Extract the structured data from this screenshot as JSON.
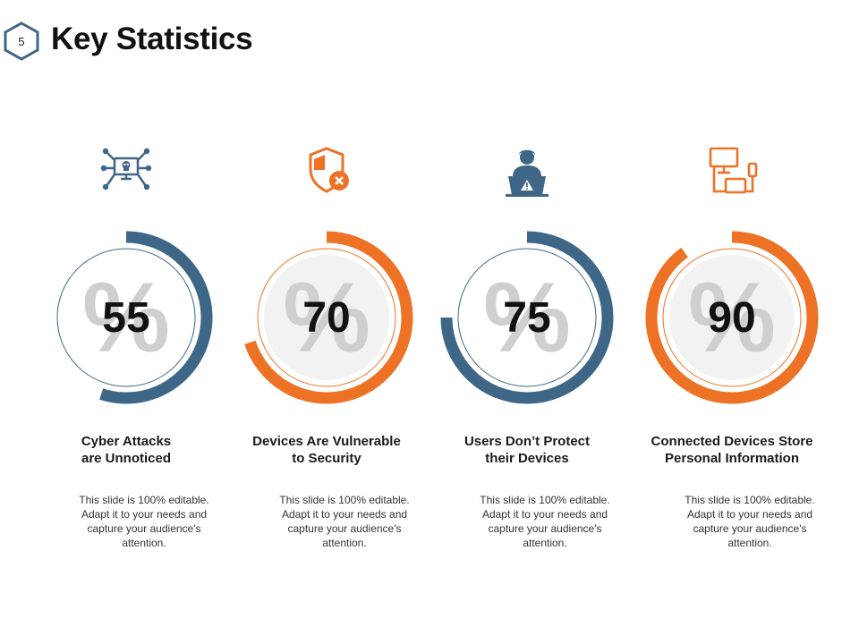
{
  "slide": {
    "number": "5",
    "title": "Key Statistics"
  },
  "colors": {
    "blue": "#3e6687",
    "orange": "#ee7226",
    "percent_watermark": "#cfcfcf"
  },
  "stats": [
    {
      "value": "55",
      "percent": 55,
      "watermark": "%",
      "color": "#3e6687",
      "icon": "monitor-skull-network-icon",
      "heading": "Cyber Attacks\nare Unnoticed",
      "description": "This slide is 100% editable. Adapt it to your needs and capture your audience's attention."
    },
    {
      "value": "70",
      "percent": 70,
      "watermark": "%",
      "color": "#ee7226",
      "icon": "shield-x-icon",
      "heading": "Devices Are Vulnerable\nto Security",
      "description": "This slide is 100% editable. Adapt it to your needs and capture your audience's attention."
    },
    {
      "value": "75",
      "percent": 75,
      "watermark": "%",
      "color": "#3e6687",
      "icon": "user-laptop-warning-icon",
      "heading": "Users Don’t Protect\ntheir Devices",
      "description": "This slide is 100% editable. Adapt it to your needs and capture your audience's attention."
    },
    {
      "value": "90",
      "percent": 90,
      "watermark": "%",
      "color": "#ee7226",
      "icon": "connected-devices-icon",
      "heading": "Connected Devices Store\nPersonal Information",
      "description": "This slide is 100% editable. Adapt it to your needs and capture your audience's attention."
    }
  ]
}
